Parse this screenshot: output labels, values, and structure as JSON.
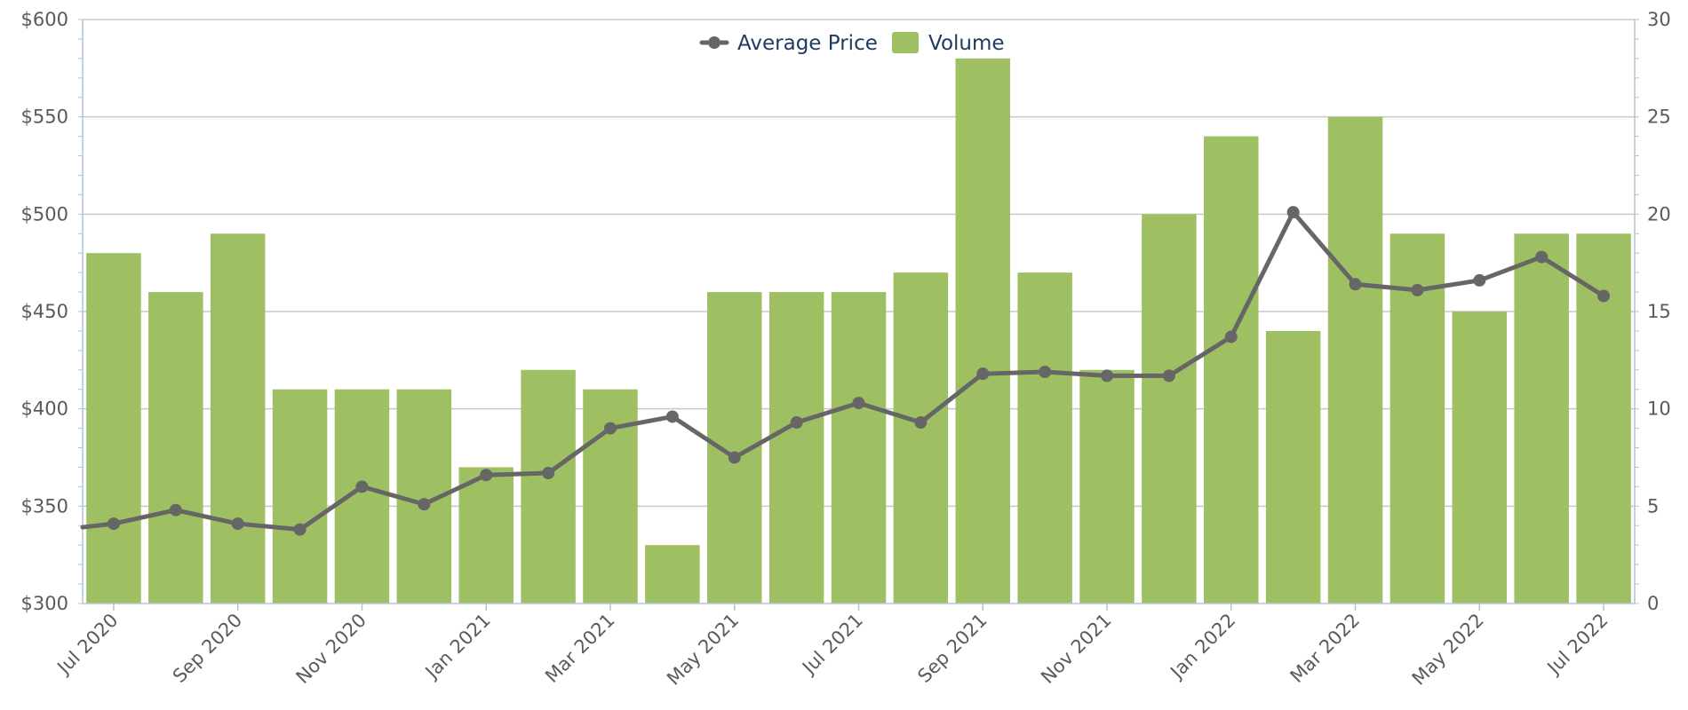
{
  "chart_data": {
    "type": "bar",
    "x": [
      "Jul 2020",
      "Aug 2020",
      "Sep 2020",
      "Oct 2020",
      "Nov 2020",
      "Dec 2020",
      "Jan 2021",
      "Feb 2021",
      "Mar 2021",
      "Apr 2021",
      "May 2021",
      "Jun 2021",
      "Jul 2021",
      "Aug 2021",
      "Sep 2021",
      "Oct 2021",
      "Nov 2021",
      "Dec 2021",
      "Jan 2022",
      "Feb 2022",
      "Mar 2022",
      "Apr 2022",
      "May 2022",
      "Jun 2022",
      "Jul 2022"
    ],
    "x_tick_labels": [
      "Jul 2020",
      "Sep 2020",
      "Nov 2020",
      "Jan 2021",
      "Mar 2021",
      "May 2021",
      "Jul 2021",
      "Sep 2021",
      "Nov 2021",
      "Jan 2022",
      "Mar 2022",
      "May 2022",
      "Jul 2022"
    ],
    "series": [
      {
        "name": "Volume",
        "type": "bar",
        "axis": "right",
        "color": "#9ec063",
        "values": [
          18,
          16,
          19,
          11,
          11,
          11,
          7,
          12,
          11,
          3,
          16,
          16,
          16,
          17,
          28,
          17,
          12,
          20,
          24,
          14,
          25,
          19,
          15,
          19,
          19
        ]
      },
      {
        "name": "Average Price",
        "type": "line",
        "axis": "left",
        "color": "#666666",
        "values": [
          341,
          348,
          341,
          338,
          360,
          351,
          366,
          367,
          390,
          396,
          375,
          393,
          403,
          393,
          418,
          419,
          417,
          417,
          437,
          501,
          464,
          461,
          466,
          478,
          458
        ]
      }
    ],
    "left_axis": {
      "ylim": [
        300,
        600
      ],
      "ticks": [
        "$300",
        "$350",
        "$400",
        "$450",
        "$500",
        "$550",
        "$600"
      ],
      "tick_values": [
        300,
        350,
        400,
        450,
        500,
        550,
        600
      ]
    },
    "right_axis": {
      "ylim": [
        0,
        30
      ],
      "ticks": [
        "0",
        "5",
        "10",
        "15",
        "20",
        "25",
        "30"
      ],
      "tick_values": [
        0,
        5,
        10,
        15,
        20,
        25,
        30
      ]
    },
    "legend": {
      "position": "top-center",
      "items": [
        "Average Price",
        "Volume"
      ]
    },
    "grid": true,
    "title": "",
    "xlabel": "",
    "ylabel": ""
  }
}
